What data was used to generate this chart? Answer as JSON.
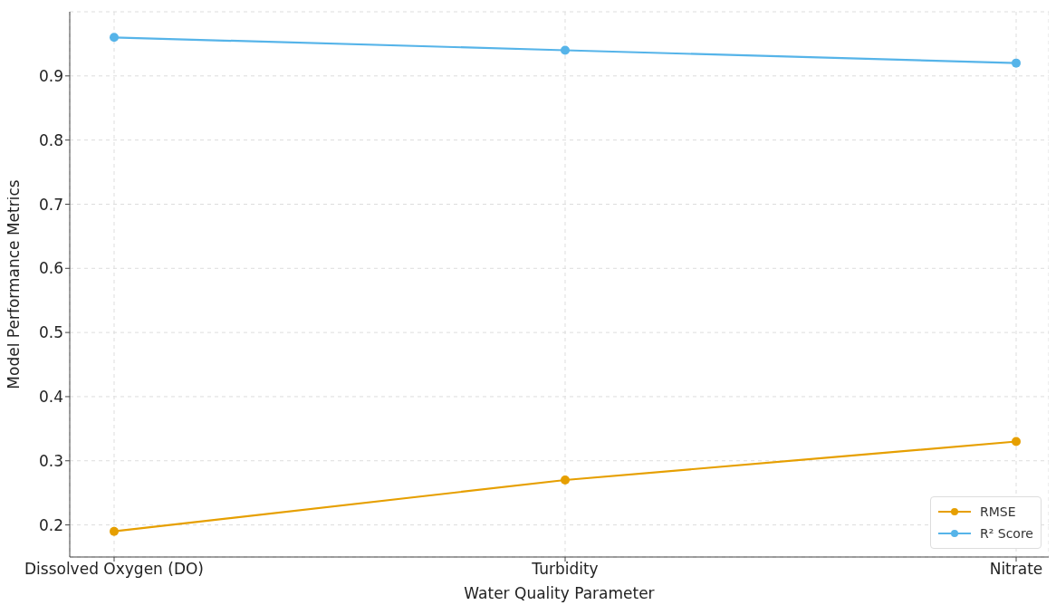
{
  "chart_data": {
    "type": "line",
    "xlabel": "Water Quality Parameter",
    "ylabel": "Model Performance Metrics",
    "categories": [
      "Dissolved Oxygen (DO)",
      "Turbidity",
      "Nitrate"
    ],
    "series": [
      {
        "name": "RMSE",
        "color": "#e69f00",
        "values": [
          0.19,
          0.27,
          0.33
        ]
      },
      {
        "name": "R² Score",
        "color": "#56b4e9",
        "values": [
          0.96,
          0.94,
          0.92
        ]
      }
    ],
    "ylim": [
      0.15,
      1.0
    ],
    "yticks": [
      0.2,
      0.3,
      0.4,
      0.5,
      0.6,
      0.7,
      0.8,
      0.9
    ],
    "grid": true,
    "legend": "bottom right",
    "marker": "circle",
    "line_style": "solid"
  }
}
